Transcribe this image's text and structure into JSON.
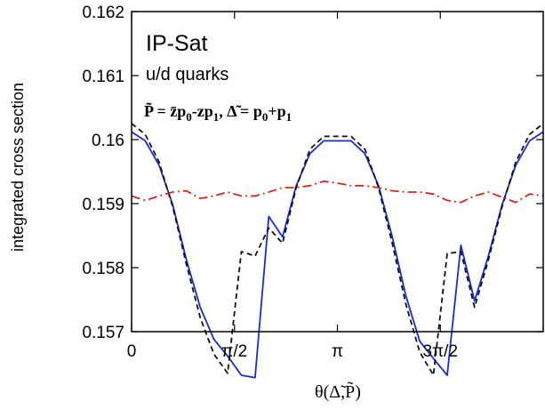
{
  "chart_data": {
    "type": "line",
    "ylabel": "integrated cross section",
    "xlabel": "θ(Δ̃,P̃)",
    "xlim": [
      0,
      6.2832
    ],
    "ylim": [
      0.157,
      0.162
    ],
    "y_ticks": [
      {
        "value": 0.157,
        "label": "0.157"
      },
      {
        "value": 0.158,
        "label": "0.158"
      },
      {
        "value": 0.159,
        "label": "0.159"
      },
      {
        "value": 0.16,
        "label": "0.16"
      },
      {
        "value": 0.161,
        "label": "0.161"
      },
      {
        "value": 0.162,
        "label": "0.162"
      }
    ],
    "x_ticks": [
      {
        "value": 0,
        "label": "0"
      },
      {
        "value": 1.5708,
        "label": "π/2"
      },
      {
        "value": 3.1416,
        "label": "π"
      },
      {
        "value": 4.7124,
        "label": "3π/2"
      }
    ],
    "annotations": {
      "model": "IP-Sat",
      "quarks": "u/d quarks",
      "eq_p": "P̃ = z̄p",
      "eq_p_sub0": "0",
      "eq_p_mid": "-zp",
      "eq_p_sub1": "1",
      "eq_sep": ", ",
      "eq_d": "Δ̃ = p",
      "eq_d_sub0": "0",
      "eq_d_mid": "+p",
      "eq_d_sub1": "1"
    },
    "x": [
      0,
      0.2094,
      0.4189,
      0.6283,
      0.8378,
      1.0472,
      1.2566,
      1.4661,
      1.6755,
      1.885,
      2.0944,
      2.3038,
      2.5133,
      2.7227,
      2.9322,
      3.1416,
      3.351,
      3.5605,
      3.7699,
      3.9794,
      4.1888,
      4.3982,
      4.6077,
      4.8171,
      5.0265,
      5.236,
      5.4454,
      5.6549,
      5.8643,
      6.0737,
      6.2832
    ],
    "series": [
      {
        "style": "solid",
        "color": "#1a2bd6",
        "values": [
          0.16012,
          0.15998,
          0.1596,
          0.15898,
          0.15812,
          0.15738,
          0.15688,
          0.15662,
          0.15632,
          0.15628,
          0.1588,
          0.15848,
          0.15928,
          0.15978,
          0.15998,
          0.15998,
          0.15998,
          0.15978,
          0.15928,
          0.15848,
          0.15755,
          0.15685,
          0.15658,
          0.15632,
          0.15835,
          0.15748,
          0.15818,
          0.15898,
          0.1596,
          0.15998,
          0.16012
        ]
      },
      {
        "style": "dashed",
        "color": "#111111",
        "values": [
          0.16025,
          0.16008,
          0.15965,
          0.15895,
          0.15805,
          0.15722,
          0.15665,
          0.15635,
          0.15825,
          0.15818,
          0.15862,
          0.15838,
          0.15925,
          0.15985,
          0.16005,
          0.16005,
          0.16005,
          0.15985,
          0.15925,
          0.15838,
          0.15742,
          0.15668,
          0.15632,
          0.15822,
          0.15825,
          0.15738,
          0.15812,
          0.15895,
          0.15965,
          0.16008,
          0.16025
        ]
      },
      {
        "style": "dashdot",
        "color": "#d9261c",
        "values": [
          0.15912,
          0.15905,
          0.15912,
          0.15918,
          0.1592,
          0.15908,
          0.15912,
          0.15918,
          0.15912,
          0.15912,
          0.15918,
          0.15925,
          0.15925,
          0.15928,
          0.15935,
          0.15932,
          0.15928,
          0.15928,
          0.15925,
          0.1592,
          0.15918,
          0.15918,
          0.15915,
          0.15905,
          0.15902,
          0.15912,
          0.15918,
          0.1591,
          0.15902,
          0.15915,
          0.15912
        ]
      }
    ]
  }
}
